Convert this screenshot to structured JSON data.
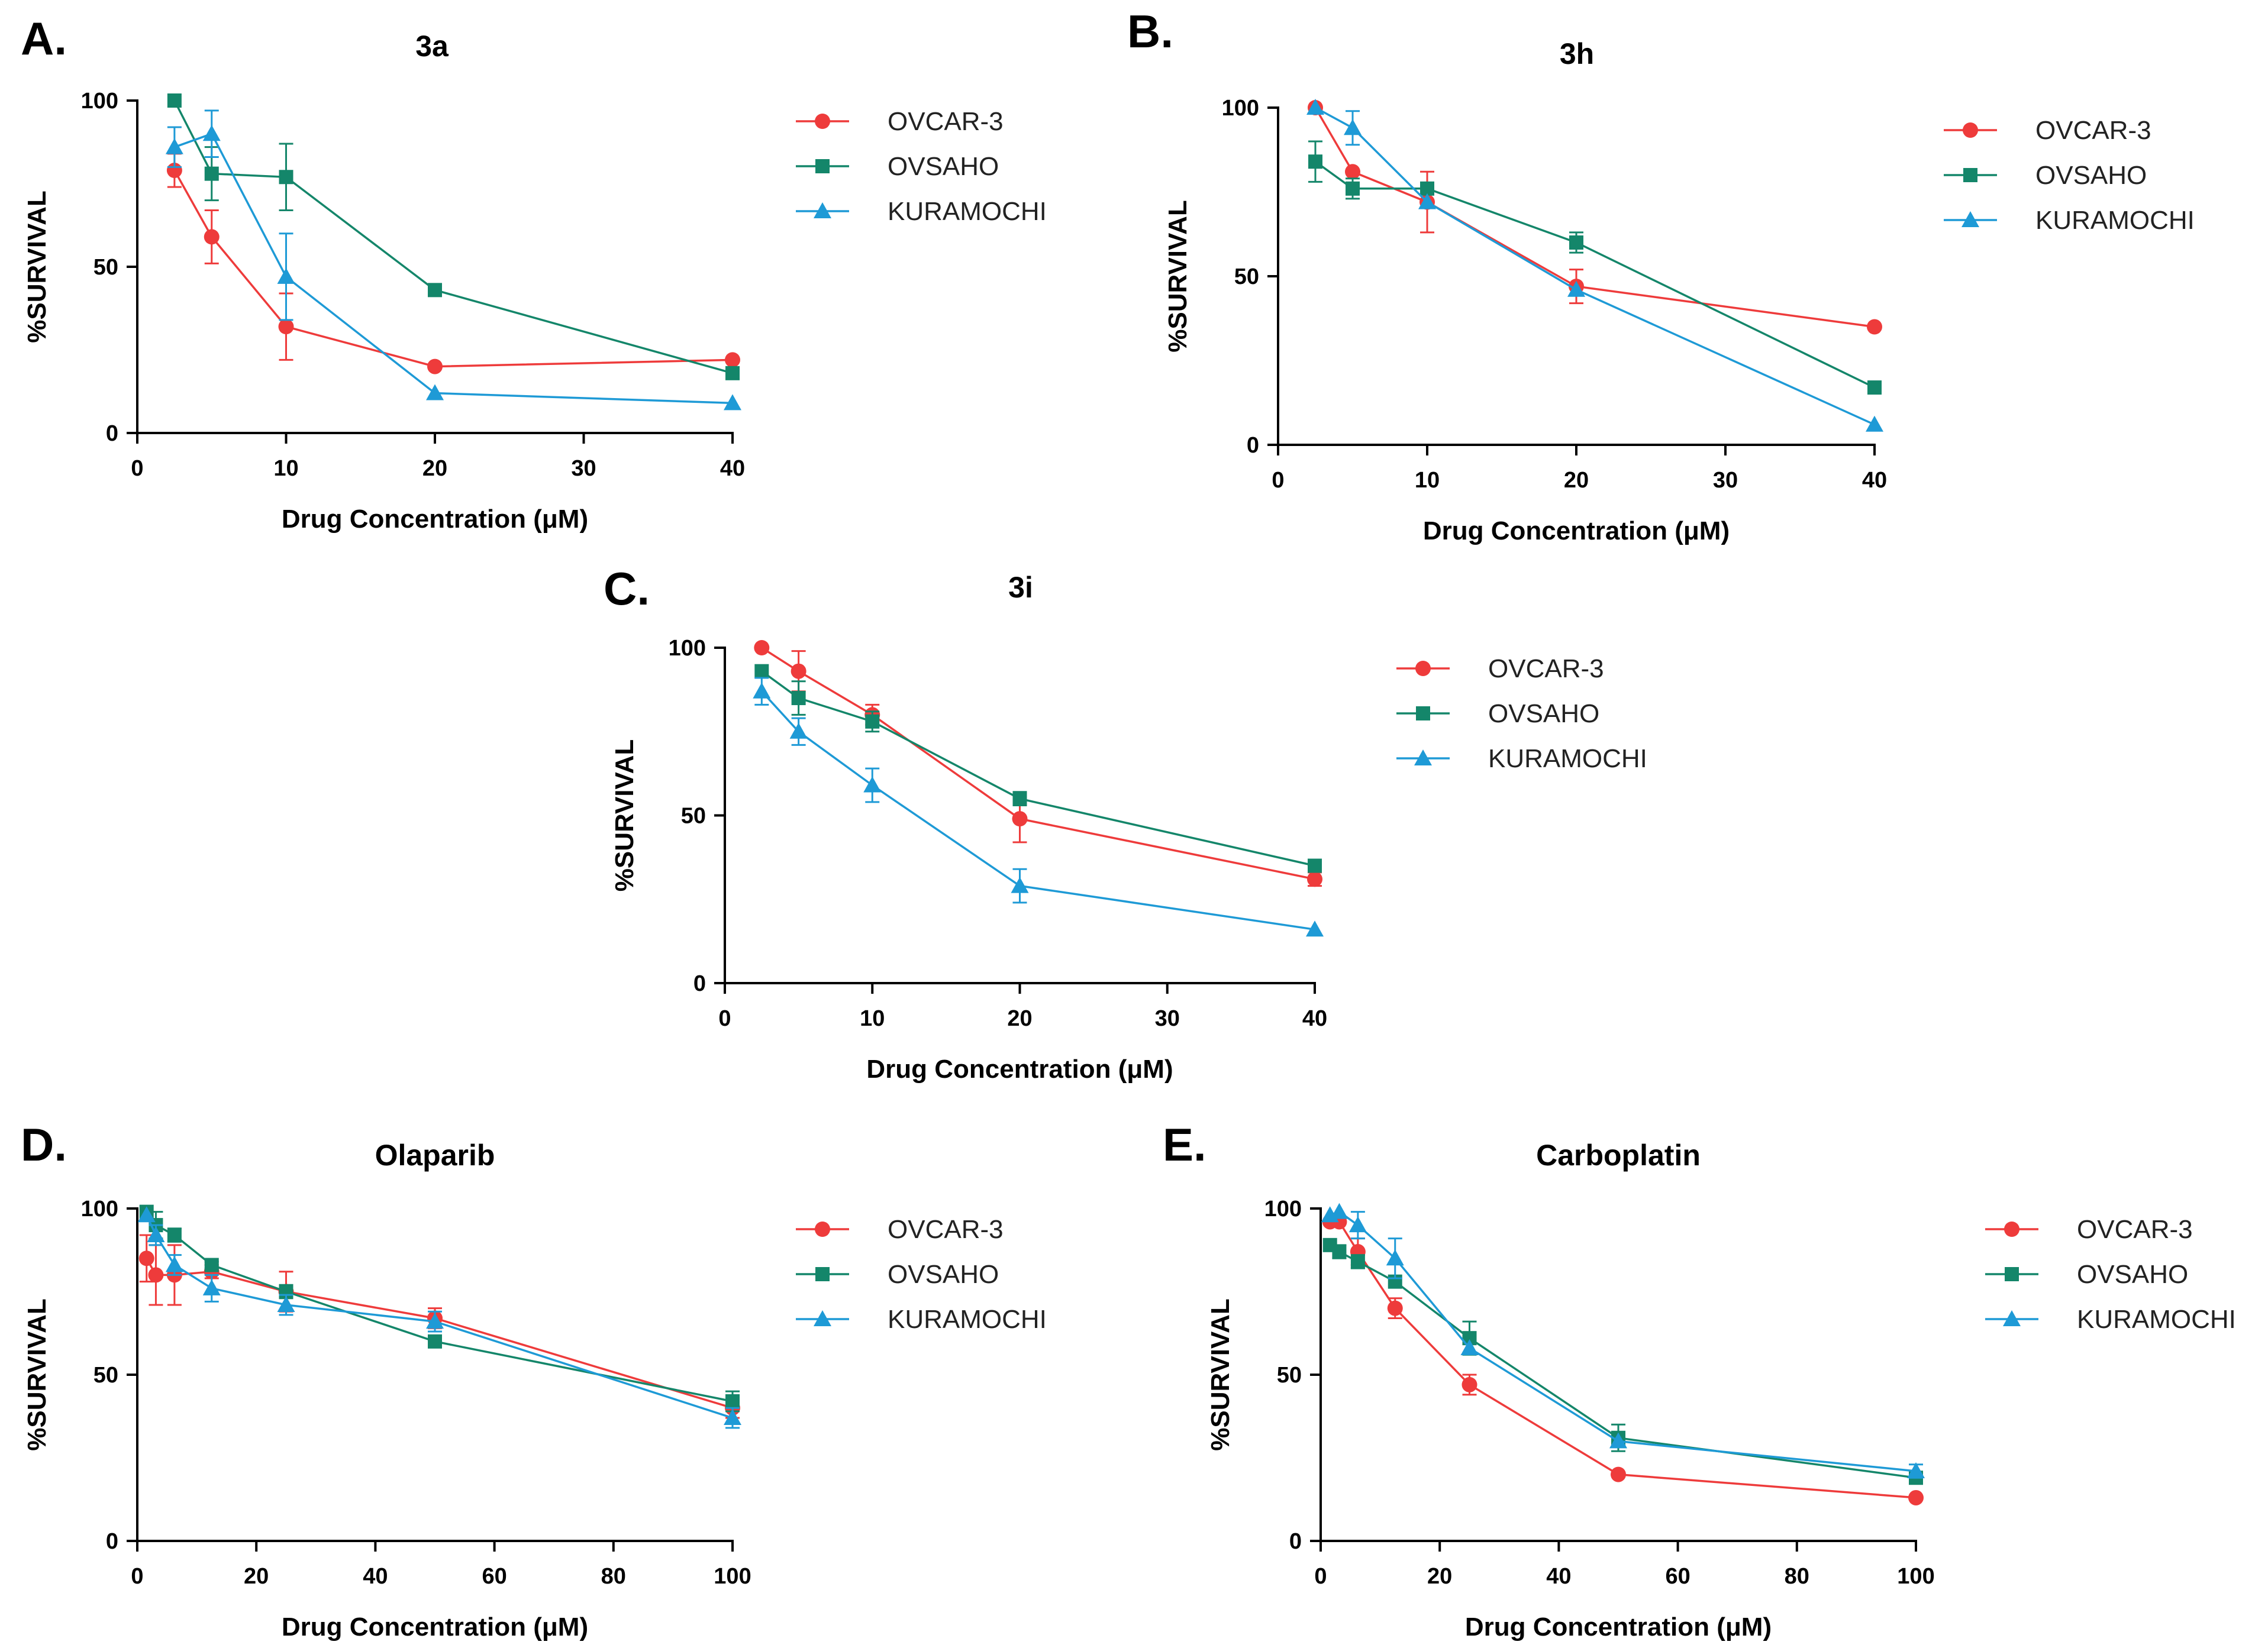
{
  "chart_data": [
    {
      "panel": "A.",
      "type": "line",
      "title": "3a",
      "xlabel": "Drug Concentration (μM)",
      "ylabel": "%SURVIVAL",
      "xlim": [
        0,
        40
      ],
      "ylim": [
        0,
        100
      ],
      "xticks": [
        0,
        10,
        20,
        30,
        40
      ],
      "yticks": [
        0,
        50,
        100
      ],
      "series": [
        {
          "name": "OVCAR-3",
          "marker": "circle",
          "x": [
            2.5,
            5,
            10,
            20,
            40
          ],
          "y": [
            79,
            59,
            32,
            20,
            22
          ],
          "err": [
            5,
            8,
            10,
            0,
            0
          ]
        },
        {
          "name": "OVSAHO",
          "marker": "square",
          "x": [
            2.5,
            5,
            10,
            20,
            40
          ],
          "y": [
            100,
            78,
            77,
            43,
            18
          ],
          "err": [
            0,
            8,
            10,
            0,
            0
          ]
        },
        {
          "name": "KURAMOCHI",
          "marker": "triangle",
          "x": [
            2.5,
            5,
            10,
            20,
            40
          ],
          "y": [
            86,
            90,
            47,
            12,
            9
          ],
          "err": [
            6,
            7,
            13,
            0,
            0
          ]
        }
      ]
    },
    {
      "panel": "B.",
      "type": "line",
      "title": "3h",
      "xlabel": "Drug Concentration (μM)",
      "ylabel": "%SURVIVAL",
      "xlim": [
        0,
        40
      ],
      "ylim": [
        0,
        100
      ],
      "xticks": [
        0,
        10,
        20,
        30,
        40
      ],
      "yticks": [
        0,
        50,
        100
      ],
      "series": [
        {
          "name": "OVCAR-3",
          "marker": "circle",
          "x": [
            2.5,
            5,
            10,
            20,
            40
          ],
          "y": [
            100,
            81,
            72,
            47,
            35
          ],
          "err": [
            0,
            0,
            9,
            5,
            0
          ]
        },
        {
          "name": "OVSAHO",
          "marker": "square",
          "x": [
            2.5,
            5,
            10,
            20,
            40
          ],
          "y": [
            84,
            76,
            76,
            60,
            17
          ],
          "err": [
            6,
            3,
            0,
            3,
            0
          ]
        },
        {
          "name": "KURAMOCHI",
          "marker": "triangle",
          "x": [
            2.5,
            5,
            10,
            20,
            40
          ],
          "y": [
            100,
            94,
            72,
            46,
            6
          ],
          "err": [
            0,
            5,
            0,
            0,
            0
          ]
        }
      ]
    },
    {
      "panel": "C.",
      "type": "line",
      "title": "3i",
      "xlabel": "Drug Concentration (μM)",
      "ylabel": "%SURVIVAL",
      "xlim": [
        0,
        40
      ],
      "ylim": [
        0,
        100
      ],
      "xticks": [
        0,
        10,
        20,
        30,
        40
      ],
      "yticks": [
        0,
        50,
        100
      ],
      "series": [
        {
          "name": "OVCAR-3",
          "marker": "circle",
          "x": [
            2.5,
            5,
            10,
            20,
            40
          ],
          "y": [
            100,
            93,
            80,
            49,
            31
          ],
          "err": [
            0,
            6,
            3,
            7,
            2
          ]
        },
        {
          "name": "OVSAHO",
          "marker": "square",
          "x": [
            2.5,
            5,
            10,
            20,
            40
          ],
          "y": [
            93,
            85,
            78,
            55,
            35
          ],
          "err": [
            0,
            5,
            3,
            2,
            0
          ]
        },
        {
          "name": "KURAMOCHI",
          "marker": "triangle",
          "x": [
            2.5,
            5,
            10,
            20,
            40
          ],
          "y": [
            87,
            75,
            59,
            29,
            16
          ],
          "err": [
            4,
            4,
            5,
            5,
            0
          ]
        }
      ]
    },
    {
      "panel": "D.",
      "type": "line",
      "title": "Olaparib",
      "xlabel": "Drug Concentration (μM)",
      "ylabel": "%SURVIVAL",
      "xlim": [
        0,
        100
      ],
      "ylim": [
        0,
        100
      ],
      "xticks": [
        0,
        20,
        40,
        60,
        80,
        100
      ],
      "yticks": [
        0,
        50,
        100
      ],
      "series": [
        {
          "name": "OVCAR-3",
          "marker": "circle",
          "x": [
            1.5625,
            3.125,
            6.25,
            12.5,
            25,
            50,
            100
          ],
          "y": [
            85,
            80,
            80,
            81,
            75,
            67,
            40
          ],
          "err": [
            7,
            9,
            9,
            2,
            6,
            3,
            3
          ]
        },
        {
          "name": "OVSAHO",
          "marker": "square",
          "x": [
            1.5625,
            3.125,
            6.25,
            12.5,
            25,
            50,
            100
          ],
          "y": [
            99,
            95,
            92,
            83,
            75,
            60,
            42
          ],
          "err": [
            0,
            4,
            2,
            1,
            2,
            0,
            3
          ]
        },
        {
          "name": "KURAMOCHI",
          "marker": "triangle",
          "x": [
            1.5625,
            3.125,
            6.25,
            12.5,
            25,
            50,
            100
          ],
          "y": [
            98,
            92,
            83,
            76,
            71,
            66,
            37
          ],
          "err": [
            0,
            3,
            3,
            4,
            3,
            3,
            3
          ]
        }
      ]
    },
    {
      "panel": "E.",
      "type": "line",
      "title": "Carboplatin",
      "xlabel": "Drug Concentration (μM)",
      "ylabel": "%SURVIVAL",
      "xlim": [
        0,
        100
      ],
      "ylim": [
        0,
        100
      ],
      "xticks": [
        0,
        20,
        40,
        60,
        80,
        100
      ],
      "yticks": [
        0,
        50,
        100
      ],
      "series": [
        {
          "name": "OVCAR-3",
          "marker": "circle",
          "x": [
            1.5625,
            3.125,
            6.25,
            12.5,
            25,
            50,
            100
          ],
          "y": [
            96,
            96,
            87,
            70,
            47,
            20,
            13
          ],
          "err": [
            0,
            0,
            4,
            3,
            3,
            0,
            0
          ]
        },
        {
          "name": "OVSAHO",
          "marker": "square",
          "x": [
            1.5625,
            3.125,
            6.25,
            12.5,
            25,
            50,
            100
          ],
          "y": [
            89,
            87,
            84,
            78,
            61,
            31,
            19
          ],
          "err": [
            0,
            2,
            2,
            0,
            5,
            4,
            0
          ]
        },
        {
          "name": "KURAMOCHI",
          "marker": "triangle",
          "x": [
            1.5625,
            3.125,
            6.25,
            12.5,
            25,
            50,
            100
          ],
          "y": [
            98,
            99,
            95,
            85,
            58,
            30,
            21
          ],
          "err": [
            0,
            0,
            4,
            6,
            0,
            0,
            2
          ]
        }
      ]
    }
  ],
  "colors": {
    "OVCAR-3": "#ee3b3b",
    "OVSAHO": "#14866a",
    "KURAMOCHI": "#1e9ad6"
  }
}
